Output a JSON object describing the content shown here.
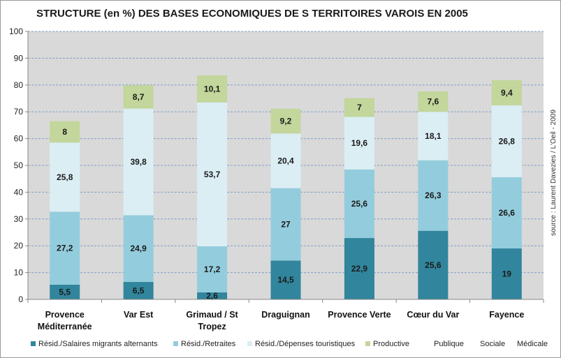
{
  "chart_data": {
    "type": "bar",
    "stacked": true,
    "title": "STRUCTURE (en %) DES BASES ECONOMIQUES DE S TERRITOIRES VAROIS EN 2005",
    "source": "source : Laurent Davezies / L'Oeil - 2009",
    "ylim": [
      0,
      100
    ],
    "yticks": [
      "0",
      "10",
      "20",
      "30",
      "40",
      "50",
      "60",
      "70",
      "80",
      "90",
      "100"
    ],
    "grid": true,
    "legend_position": "bottom",
    "categories": [
      [
        "Provence",
        "Méditerranée"
      ],
      [
        "Var Est"
      ],
      [
        "Grimaud / St",
        "Tropez"
      ],
      [
        "Draguignan"
      ],
      [
        "Provence Verte"
      ],
      [
        "Cœur du Var"
      ],
      [
        "Fayence"
      ]
    ],
    "series": [
      {
        "name": "Résid./Salaires migrants alternants",
        "color": "#31859c",
        "values": [
          5.5,
          6.5,
          2.6,
          14.5,
          22.9,
          25.6,
          19
        ],
        "labels": [
          "5,5",
          "6,5",
          "2,6",
          "14,5",
          "22,9",
          "25,6",
          "19"
        ]
      },
      {
        "name": "Résid./Retraites",
        "color": "#93cddd",
        "values": [
          27.2,
          24.9,
          17.2,
          27,
          25.6,
          26.3,
          26.6
        ],
        "labels": [
          "27,2",
          "24,9",
          "17,2",
          "27",
          "25,6",
          "26,3",
          "26,6"
        ]
      },
      {
        "name": "Résid./Dépenses touristiques",
        "color": "#dbeef4",
        "values": [
          25.8,
          39.8,
          53.7,
          20.4,
          19.6,
          18.1,
          26.8
        ],
        "labels": [
          "25,8",
          "39,8",
          "53,7",
          "20,4",
          "19,6",
          "18,1",
          "26,8"
        ]
      },
      {
        "name": "Productive",
        "color": "#c3d69b",
        "values": [
          8,
          8.7,
          10.1,
          9.2,
          7,
          7.6,
          9.4
        ],
        "labels": [
          "8",
          "8,7",
          "10,1",
          "9,2",
          "7",
          "7,6",
          "9,4"
        ]
      },
      {
        "name": "Publique",
        "color": "",
        "values": [
          0,
          0,
          0,
          0,
          0,
          0,
          0
        ],
        "labels": []
      },
      {
        "name": "Sociale",
        "color": "",
        "values": [
          0,
          0,
          0,
          0,
          0,
          0,
          0
        ],
        "labels": []
      },
      {
        "name": "Médicale",
        "color": "",
        "values": [
          0,
          0,
          0,
          0,
          0,
          0,
          0
        ],
        "labels": []
      }
    ],
    "plot_background": "#d9d9d9",
    "gridline_color": "#7f9fc7"
  }
}
